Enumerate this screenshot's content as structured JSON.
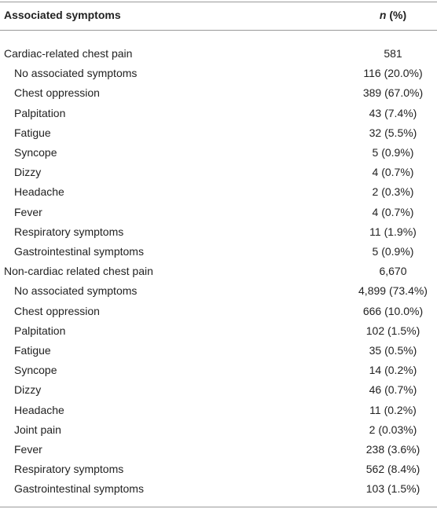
{
  "header": {
    "symptom": "Associated symptoms",
    "n": "n",
    "percent": "(%)"
  },
  "groups": [
    {
      "label": "Cardiac-related chest pain",
      "value": "581",
      "items": [
        {
          "label": "No associated symptoms",
          "value": "116 (20.0%)"
        },
        {
          "label": "Chest oppression",
          "value": "389 (67.0%)"
        },
        {
          "label": "Palpitation",
          "value": "43 (7.4%)"
        },
        {
          "label": "Fatigue",
          "value": "32 (5.5%)"
        },
        {
          "label": "Syncope",
          "value": "5 (0.9%)"
        },
        {
          "label": "Dizzy",
          "value": "4 (0.7%)"
        },
        {
          "label": "Headache",
          "value": "2 (0.3%)"
        },
        {
          "label": "Fever",
          "value": "4 (0.7%)"
        },
        {
          "label": "Respiratory symptoms",
          "value": "11 (1.9%)"
        },
        {
          "label": "Gastrointestinal symptoms",
          "value": "5 (0.9%)"
        }
      ]
    },
    {
      "label": "Non-cardiac related chest pain",
      "value": "6,670",
      "items": [
        {
          "label": "No associated symptoms",
          "value": "4,899 (73.4%)"
        },
        {
          "label": "Chest oppression",
          "value": "666 (10.0%)"
        },
        {
          "label": "Palpitation",
          "value": "102 (1.5%)"
        },
        {
          "label": "Fatigue",
          "value": "35 (0.5%)"
        },
        {
          "label": "Syncope",
          "value": "14 (0.2%)"
        },
        {
          "label": "Dizzy",
          "value": "46 (0.7%)"
        },
        {
          "label": "Headache",
          "value": "11 (0.2%)"
        },
        {
          "label": "Joint pain",
          "value": "2 (0.03%)"
        },
        {
          "label": "Fever",
          "value": "238 (3.6%)"
        },
        {
          "label": "Respiratory symptoms",
          "value": "562 (8.4%)"
        },
        {
          "label": "Gastrointestinal symptoms",
          "value": "103 (1.5%)"
        }
      ]
    }
  ]
}
